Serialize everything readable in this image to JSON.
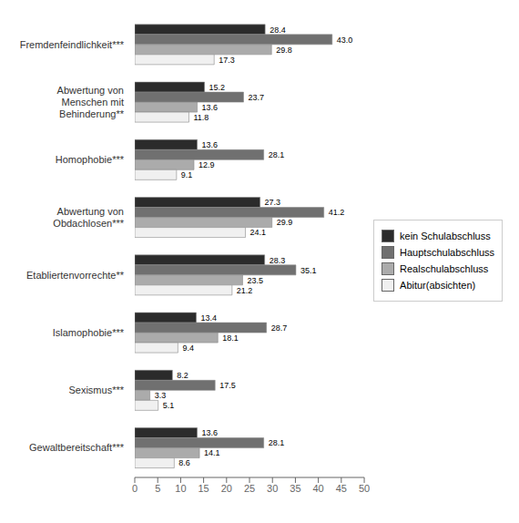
{
  "chart_data": {
    "type": "bar",
    "orientation": "horizontal",
    "categories": [
      "Fremdenfeindlichkeit***",
      "Abwertung von\nMenschen mit\nBehinderung**",
      "Homophobie***",
      "Abwertung von\nObdachlosen***",
      "Etabliertenvorrechte**",
      "Islamophobie***",
      "Sexismus***",
      "Gewaltbereitschaft***"
    ],
    "series": [
      {
        "name": "kein Schulabschluss",
        "color": "#2b2b2b",
        "values": [
          28.4,
          15.2,
          13.6,
          27.3,
          28.3,
          13.4,
          8.2,
          13.6
        ],
        "value_labels": [
          "28.4",
          "15.2",
          "13.6",
          "27.3",
          "28.3",
          "13.4",
          "8.2",
          "13.6"
        ]
      },
      {
        "name": "Hauptschulabschluss",
        "color": "#707070",
        "values": [
          43.0,
          23.7,
          28.1,
          41.2,
          35.1,
          28.7,
          17.5,
          28.1
        ],
        "value_labels": [
          "43.0",
          "23.7",
          "28.1",
          "41.2",
          "35.1",
          "28.7",
          "17.5",
          "28.1"
        ]
      },
      {
        "name": "Realschulabschluss",
        "color": "#ababab",
        "values": [
          29.8,
          13.6,
          12.9,
          29.9,
          23.5,
          18.1,
          3.3,
          14.1
        ],
        "value_labels": [
          "29.8",
          "13.6",
          "12.9",
          "29.9",
          "23.5",
          "18.1",
          "3.3",
          "14.1"
        ]
      },
      {
        "name": "Abitur(absichten)",
        "color": "#f0f0f0",
        "values": [
          17.3,
          11.8,
          9.1,
          24.1,
          21.2,
          9.4,
          5.1,
          8.6
        ],
        "value_labels": [
          "17.3",
          "11.8",
          "9.1",
          "24.1",
          "21.2",
          "9.4",
          "5.1",
          "8.6"
        ]
      }
    ],
    "xlim": [
      0,
      50
    ],
    "xticks": [
      0,
      5,
      10,
      15,
      20,
      25,
      30,
      35,
      40,
      45,
      50
    ],
    "grid": false,
    "legend": "right",
    "data_labels": true
  }
}
